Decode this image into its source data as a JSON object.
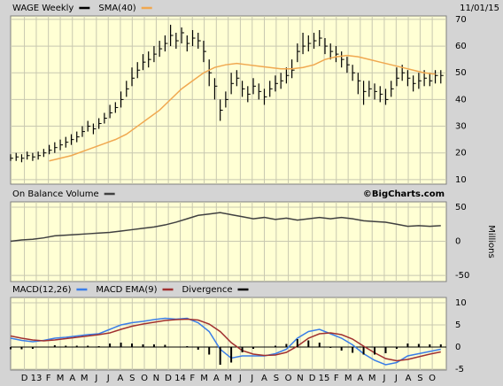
{
  "chart_data": [
    {
      "type": "ohlc",
      "date": "11/01/15",
      "xlim": [
        0,
        158
      ],
      "ylim": [
        8.3,
        71.3
      ],
      "yticks": [
        10,
        20,
        30,
        40,
        50,
        60,
        70
      ],
      "grid": true,
      "series": [
        {
          "name": "WAGE Weekly",
          "color": "#000000",
          "x": [
            0,
            2,
            4,
            6,
            8,
            10,
            12,
            14,
            16,
            18,
            20,
            22,
            24,
            26,
            28,
            30,
            32,
            34,
            36,
            38,
            40,
            42,
            44,
            46,
            48,
            50,
            52,
            54,
            56,
            58,
            60,
            62,
            64,
            66,
            68,
            70,
            72,
            74,
            76,
            78,
            80,
            82,
            84,
            86,
            88,
            90,
            92,
            94,
            96,
            98,
            100,
            102,
            104,
            106,
            108,
            110,
            112,
            114,
            116,
            118,
            120,
            122,
            124,
            126,
            128,
            130,
            132,
            134,
            136,
            138,
            140,
            142,
            144,
            146,
            148,
            150,
            152,
            154,
            156
          ],
          "high": [
            19.5,
            20,
            19.5,
            20.5,
            20,
            20.5,
            21.5,
            23,
            24,
            25,
            26,
            27,
            28,
            30,
            32,
            31,
            33,
            35,
            38,
            39,
            43,
            47,
            52,
            54,
            57,
            58,
            60,
            62,
            64,
            68,
            65,
            67,
            64,
            66,
            65,
            62,
            55,
            48,
            40,
            43,
            50,
            51,
            47,
            45,
            48,
            46,
            44,
            47,
            49,
            50,
            52,
            55,
            61,
            65,
            64,
            65,
            66,
            63,
            61,
            60,
            58,
            56,
            53,
            50,
            47,
            47,
            46,
            45,
            44,
            47,
            52,
            53,
            51,
            49,
            50,
            51,
            50,
            51,
            51
          ],
          "low": [
            17,
            17,
            16.5,
            17.5,
            17,
            17.5,
            18.5,
            19.5,
            20,
            21,
            22,
            23,
            24,
            26,
            28,
            27,
            29,
            31,
            33,
            35,
            37,
            41,
            45,
            48,
            51,
            52,
            54,
            56,
            58,
            60,
            59,
            61,
            58,
            60,
            59,
            54,
            45,
            40,
            32,
            37,
            42,
            45,
            41,
            39,
            42,
            40,
            38,
            41,
            43,
            44,
            46,
            48,
            54,
            57,
            58,
            59,
            60,
            57,
            55,
            54,
            52,
            50,
            47,
            42,
            38,
            41,
            40,
            39,
            38,
            41,
            45,
            47,
            45,
            43,
            44,
            45,
            45,
            46,
            46
          ],
          "close": [
            18,
            18.5,
            18,
            19,
            18.5,
            19,
            20,
            21,
            22,
            23,
            24,
            25,
            26,
            28,
            30,
            29,
            31,
            33,
            35,
            37,
            40,
            44,
            48,
            51,
            54,
            55,
            57,
            59,
            61,
            64,
            62,
            65,
            61,
            63,
            62,
            58,
            50,
            45,
            36,
            40,
            46,
            48,
            44,
            42,
            45,
            43,
            41,
            44,
            46,
            47,
            49,
            51,
            58,
            60,
            61,
            62,
            63,
            60,
            58,
            57,
            55,
            53,
            50,
            47,
            43,
            44,
            43,
            42,
            40,
            44,
            48,
            50,
            48,
            46,
            47,
            48,
            47,
            49,
            49
          ]
        },
        {
          "name": "SMA(40)",
          "color": "#f0a850",
          "type": "line",
          "x": [
            14,
            18,
            22,
            26,
            30,
            34,
            38,
            42,
            46,
            50,
            54,
            58,
            62,
            66,
            70,
            74,
            78,
            82,
            86,
            90,
            94,
            98,
            102,
            106,
            110,
            114,
            118,
            122,
            126,
            130,
            134,
            138,
            142,
            146,
            150,
            154
          ],
          "values": [
            17,
            18,
            19,
            20.5,
            22,
            23.5,
            25,
            27,
            30,
            33,
            36,
            40,
            44,
            47,
            50,
            52,
            53,
            53.5,
            53,
            52.5,
            52,
            51.5,
            51.5,
            52,
            53,
            55,
            56,
            56.5,
            56,
            55,
            54,
            53,
            52,
            51,
            50,
            49.5
          ]
        }
      ]
    },
    {
      "type": "line",
      "credit": "©BigCharts.com",
      "ylabel": "Millions",
      "xlim": [
        0,
        158
      ],
      "ylim": [
        -59,
        57.8
      ],
      "yticks": [
        -50,
        0,
        50
      ],
      "grid": true,
      "series": [
        {
          "name": "On Balance Volume",
          "color": "#404040",
          "x": [
            0,
            4,
            8,
            12,
            16,
            20,
            24,
            28,
            32,
            36,
            40,
            44,
            48,
            52,
            56,
            60,
            64,
            68,
            72,
            76,
            80,
            84,
            88,
            92,
            96,
            100,
            104,
            108,
            112,
            116,
            120,
            124,
            128,
            132,
            136,
            140,
            144,
            148,
            152,
            156
          ],
          "values": [
            0,
            2,
            3,
            5,
            8,
            9,
            10,
            11,
            12,
            13,
            15,
            17,
            19,
            21,
            24,
            28,
            33,
            38,
            40,
            42,
            39,
            36,
            33,
            35,
            32,
            34,
            31,
            33,
            35,
            33,
            35,
            33,
            30,
            29,
            28,
            25,
            22,
            23,
            22,
            23
          ]
        }
      ]
    },
    {
      "type": "line",
      "xlim": [
        0,
        158
      ],
      "ylim": [
        -5.2,
        11.2
      ],
      "yticks": [
        -5,
        0,
        5,
        10
      ],
      "grid": true,
      "xticks": [
        {
          "value": 5,
          "label": "D"
        },
        {
          "value": 9.3,
          "label": "13"
        },
        {
          "value": 13.7,
          "label": "F"
        },
        {
          "value": 18,
          "label": "M"
        },
        {
          "value": 22.4,
          "label": "A"
        },
        {
          "value": 26.7,
          "label": "M"
        },
        {
          "value": 31.1,
          "label": "J"
        },
        {
          "value": 35.4,
          "label": "J"
        },
        {
          "value": 39.8,
          "label": "A"
        },
        {
          "value": 44.1,
          "label": "S"
        },
        {
          "value": 48.5,
          "label": "O"
        },
        {
          "value": 52.8,
          "label": "N"
        },
        {
          "value": 57.2,
          "label": "D"
        },
        {
          "value": 61.5,
          "label": "14"
        },
        {
          "value": 65.9,
          "label": "F"
        },
        {
          "value": 70.2,
          "label": "M"
        },
        {
          "value": 74.6,
          "label": "A"
        },
        {
          "value": 78.9,
          "label": "M"
        },
        {
          "value": 83.3,
          "label": "J"
        },
        {
          "value": 87.6,
          "label": "J"
        },
        {
          "value": 92,
          "label": "A"
        },
        {
          "value": 96.3,
          "label": "S"
        },
        {
          "value": 100.7,
          "label": "O"
        },
        {
          "value": 105,
          "label": "N"
        },
        {
          "value": 109.4,
          "label": "D"
        },
        {
          "value": 113.7,
          "label": "15"
        },
        {
          "value": 118.1,
          "label": "F"
        },
        {
          "value": 122.4,
          "label": "M"
        },
        {
          "value": 126.8,
          "label": "A"
        },
        {
          "value": 131.1,
          "label": "M"
        },
        {
          "value": 135.5,
          "label": "J"
        },
        {
          "value": 139.8,
          "label": "J"
        },
        {
          "value": 144.2,
          "label": "A"
        },
        {
          "value": 148.5,
          "label": "S"
        },
        {
          "value": 152.9,
          "label": "O"
        }
      ],
      "series": [
        {
          "name": "MACD(12,26)",
          "color": "#3a7ee8",
          "x": [
            0,
            4,
            8,
            12,
            16,
            20,
            24,
            28,
            32,
            36,
            40,
            44,
            48,
            52,
            56,
            60,
            64,
            68,
            72,
            76,
            80,
            84,
            88,
            92,
            96,
            100,
            104,
            108,
            112,
            116,
            120,
            124,
            128,
            132,
            136,
            140,
            144,
            148,
            152,
            156
          ],
          "values": [
            2,
            1.5,
            1.2,
            1.5,
            2,
            2.2,
            2.5,
            2.8,
            3,
            4,
            5,
            5.5,
            5.8,
            6.2,
            6.5,
            6.3,
            6.5,
            5.5,
            3.5,
            -0.5,
            -2.5,
            -2,
            -2,
            -2,
            -1.5,
            -0.5,
            2,
            3.5,
            4,
            3,
            2,
            0.5,
            -1.5,
            -3,
            -4,
            -3.5,
            -2,
            -1.5,
            -1,
            -0.5
          ]
        },
        {
          "name": "MACD EMA(9)",
          "color": "#a03030",
          "x": [
            0,
            4,
            8,
            12,
            16,
            20,
            24,
            28,
            32,
            36,
            40,
            44,
            48,
            52,
            56,
            60,
            64,
            68,
            72,
            76,
            80,
            84,
            88,
            92,
            96,
            100,
            104,
            108,
            112,
            116,
            120,
            124,
            128,
            132,
            136,
            140,
            144,
            148,
            152,
            156
          ],
          "values": [
            2.5,
            2,
            1.6,
            1.4,
            1.6,
            1.9,
            2.2,
            2.5,
            2.8,
            3.2,
            4,
            4.7,
            5.2,
            5.6,
            6,
            6.2,
            6.3,
            6.1,
            5.2,
            3.5,
            1,
            -0.8,
            -1.6,
            -1.9,
            -1.8,
            -1.2,
            0.2,
            2,
            3,
            3.2,
            2.8,
            1.8,
            0.2,
            -1.3,
            -2.6,
            -3.1,
            -2.8,
            -2.2,
            -1.6,
            -1.1
          ]
        },
        {
          "name": "Divergence",
          "color": "#000000",
          "type": "bar",
          "x": [
            0,
            4,
            8,
            12,
            16,
            20,
            24,
            28,
            32,
            36,
            40,
            44,
            48,
            52,
            56,
            60,
            64,
            68,
            72,
            76,
            80,
            84,
            88,
            92,
            96,
            100,
            104,
            108,
            112,
            116,
            120,
            124,
            128,
            132,
            136,
            140,
            144,
            148,
            152,
            156
          ],
          "values": [
            -0.5,
            -0.5,
            -0.4,
            0.1,
            0.4,
            0.3,
            0.3,
            0.3,
            0.2,
            0.8,
            1,
            0.8,
            0.6,
            0.6,
            0.5,
            0.1,
            0.2,
            -0.6,
            -1.7,
            -4,
            -3.5,
            -1.2,
            -0.4,
            -0.1,
            0.3,
            0.7,
            1.8,
            1.5,
            1,
            -0.2,
            -0.8,
            -1.3,
            -1.7,
            -1.7,
            -1.4,
            -0.4,
            0.8,
            0.7,
            0.6,
            0.6
          ]
        }
      ]
    }
  ]
}
